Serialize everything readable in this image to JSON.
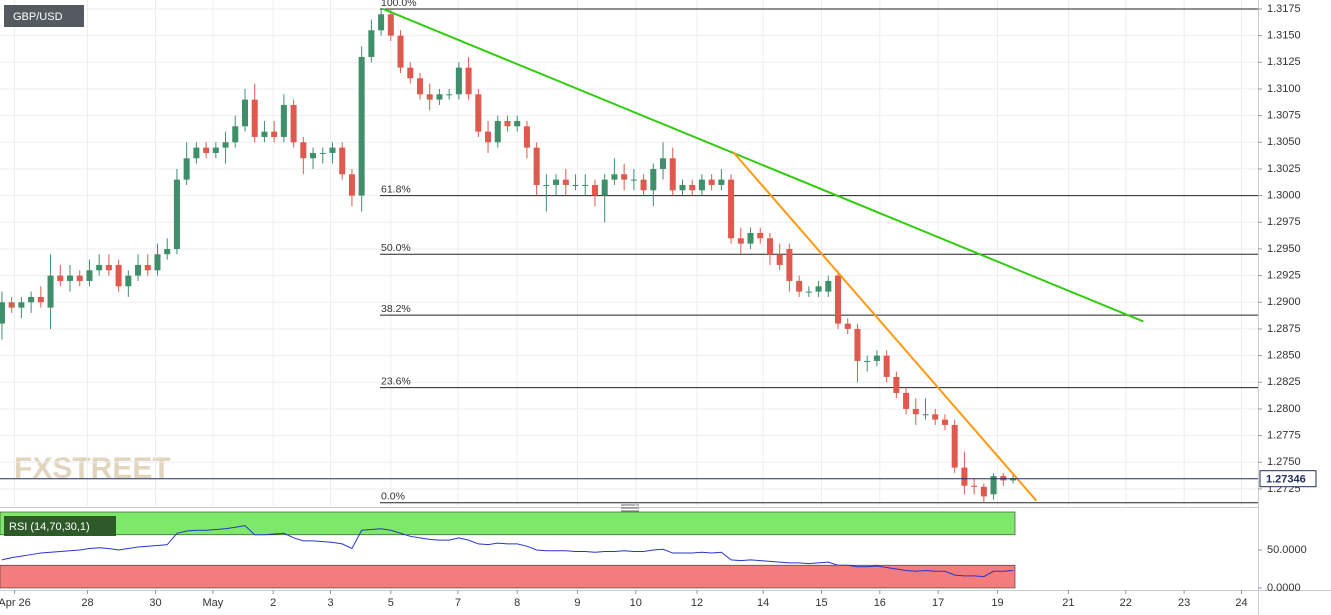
{
  "chart_data": [
    {
      "type": "candlestick",
      "title": "GBP/USD",
      "open": [
        1.288,
        1.29,
        1.2895,
        1.29,
        1.2905,
        1.2895,
        1.2925,
        1.292,
        1.2925,
        1.292,
        1.293,
        1.2935,
        1.2935,
        1.2915,
        1.2925,
        1.2935,
        1.293,
        1.2945,
        1.295,
        1.3015,
        1.3035,
        1.3045,
        1.304,
        1.3045,
        1.305,
        1.3065,
        1.309,
        1.3055,
        1.306,
        1.3055,
        1.3085,
        1.305,
        1.3035,
        1.304,
        1.304,
        1.3045,
        1.302,
        1.3,
        1.313,
        1.3155,
        1.317,
        1.315,
        1.312,
        1.311,
        1.3095,
        1.309,
        1.3095,
        1.3095,
        1.312,
        1.3095,
        1.306,
        1.305,
        1.307,
        1.3065,
        1.3065,
        1.3045,
        1.301,
        1.301,
        1.3015,
        1.301,
        1.301,
        1.301,
        1.3,
        1.3015,
        1.302,
        1.3015,
        1.3015,
        1.3005,
        1.3025,
        1.3035,
        1.3005,
        1.301,
        1.3005,
        1.3015,
        1.301,
        1.3015,
        1.296,
        1.2955,
        1.2965,
        1.296,
        1.2945,
        1.295,
        1.292,
        1.291,
        1.291,
        1.291,
        1.2925,
        1.288,
        1.2875,
        1.2845,
        1.2845,
        1.285,
        1.283,
        1.2815,
        1.28,
        1.2795,
        1.2795,
        1.279,
        1.2785,
        1.2745,
        1.2728,
        1.2727,
        1.272,
        1.2737,
        1.2733
      ],
      "high": [
        1.291,
        1.2905,
        1.2905,
        1.291,
        1.2915,
        1.2945,
        1.2935,
        1.2935,
        1.293,
        1.294,
        1.2945,
        1.2945,
        1.294,
        1.293,
        1.2945,
        1.2945,
        1.2955,
        1.296,
        1.3025,
        1.305,
        1.305,
        1.305,
        1.305,
        1.306,
        1.3075,
        1.31,
        1.3105,
        1.307,
        1.307,
        1.3095,
        1.309,
        1.3055,
        1.3045,
        1.3045,
        1.305,
        1.305,
        1.3025,
        1.314,
        1.3165,
        1.3175,
        1.3175,
        1.3155,
        1.3125,
        1.3115,
        1.3105,
        1.31,
        1.31,
        1.3125,
        1.313,
        1.31,
        1.307,
        1.3075,
        1.3075,
        1.3075,
        1.307,
        1.305,
        1.302,
        1.302,
        1.3025,
        1.302,
        1.302,
        1.3015,
        1.302,
        1.3035,
        1.303,
        1.3025,
        1.302,
        1.303,
        1.305,
        1.3045,
        1.3015,
        1.3015,
        1.302,
        1.302,
        1.3025,
        1.302,
        1.297,
        1.297,
        1.297,
        1.2965,
        1.2955,
        1.2955,
        1.2925,
        1.2915,
        1.292,
        1.2925,
        1.293,
        1.2885,
        1.288,
        1.285,
        1.2855,
        1.2855,
        1.2835,
        1.282,
        1.281,
        1.281,
        1.28,
        1.2795,
        1.279,
        1.276,
        1.2735,
        1.273,
        1.274,
        1.274,
        1.2738
      ],
      "low": [
        1.2865,
        1.289,
        1.2885,
        1.289,
        1.2895,
        1.2875,
        1.2915,
        1.291,
        1.2915,
        1.2915,
        1.2925,
        1.2925,
        1.291,
        1.2905,
        1.292,
        1.2925,
        1.2925,
        1.294,
        1.2945,
        1.301,
        1.303,
        1.3035,
        1.3035,
        1.303,
        1.3045,
        1.306,
        1.305,
        1.305,
        1.305,
        1.305,
        1.3045,
        1.302,
        1.3025,
        1.303,
        1.303,
        1.3015,
        1.299,
        1.2985,
        1.3125,
        1.315,
        1.3145,
        1.3115,
        1.3105,
        1.309,
        1.308,
        1.3085,
        1.309,
        1.309,
        1.309,
        1.3055,
        1.304,
        1.3045,
        1.306,
        1.306,
        1.3035,
        1.3,
        1.2985,
        1.3,
        1.3,
        1.3005,
        1.3,
        1.299,
        1.2975,
        1.301,
        1.3005,
        1.3005,
        1.3,
        1.299,
        1.3015,
        1.3,
        1.3,
        1.3,
        1.3,
        1.3005,
        1.3005,
        1.2955,
        1.2945,
        1.295,
        1.2955,
        1.2935,
        1.293,
        1.291,
        1.2905,
        1.2905,
        1.2905,
        1.2905,
        1.2875,
        1.287,
        1.2825,
        1.2835,
        1.284,
        1.2825,
        1.281,
        1.2795,
        1.2785,
        1.279,
        1.2785,
        1.278,
        1.274,
        1.272,
        1.272,
        1.2712,
        1.2715,
        1.2728,
        1.273
      ],
      "close": [
        1.29,
        1.2895,
        1.29,
        1.2905,
        1.29,
        1.2925,
        1.292,
        1.2925,
        1.292,
        1.293,
        1.2935,
        1.293,
        1.2915,
        1.2925,
        1.2935,
        1.293,
        1.2945,
        1.295,
        1.3015,
        1.3035,
        1.3045,
        1.304,
        1.3045,
        1.305,
        1.3065,
        1.309,
        1.3055,
        1.306,
        1.3055,
        1.3085,
        1.305,
        1.3035,
        1.304,
        1.304,
        1.3045,
        1.302,
        1.3,
        1.313,
        1.3155,
        1.317,
        1.315,
        1.312,
        1.311,
        1.3095,
        1.309,
        1.3095,
        1.3095,
        1.312,
        1.3095,
        1.306,
        1.305,
        1.307,
        1.3065,
        1.307,
        1.3045,
        1.301,
        1.301,
        1.3015,
        1.301,
        1.301,
        1.301,
        1.3,
        1.3015,
        1.302,
        1.3015,
        1.3015,
        1.3005,
        1.3025,
        1.3035,
        1.3005,
        1.301,
        1.3005,
        1.3015,
        1.301,
        1.3015,
        1.296,
        1.2955,
        1.2965,
        1.296,
        1.2945,
        1.2935,
        1.292,
        1.291,
        1.291,
        1.2915,
        1.292,
        1.288,
        1.2875,
        1.2845,
        1.2845,
        1.285,
        1.283,
        1.2815,
        1.28,
        1.2795,
        1.2795,
        1.279,
        1.2785,
        1.2745,
        1.2728,
        1.2727,
        1.2718,
        1.2737,
        1.2733,
        1.2735
      ],
      "up_color": "#3f8f6b",
      "down_color": "#de5a4e",
      "ylim": [
        1.2709,
        1.31834
      ],
      "yticks": [
        1.2725,
        {
          "value": 1.275,
          "label": "1.2750"
        },
        1.2775,
        {
          "value": 1.28,
          "label": "1.2800"
        },
        1.2825,
        {
          "value": 1.285,
          "label": "1.2850"
        },
        1.2875,
        {
          "value": 1.29,
          "label": "1.2900"
        },
        1.2925,
        {
          "value": 1.295,
          "label": "1.2950"
        },
        1.2975,
        {
          "value": 1.3,
          "label": "1.3000"
        },
        1.3025,
        {
          "value": 1.305,
          "label": "1.3050"
        },
        1.3075,
        {
          "value": 1.31,
          "label": "1.3100"
        },
        1.3125,
        {
          "value": 1.315,
          "label": "1.3150"
        },
        1.3175
      ],
      "xlim": [
        -0.2,
        129.2
      ],
      "xticks": [
        {
          "value": 1.3,
          "label": "Apr 26"
        },
        {
          "value": 8.8,
          "label": "28"
        },
        {
          "value": 15.8,
          "label": "30"
        },
        {
          "value": 21.7,
          "label": "May"
        },
        {
          "value": 27.9,
          "label": "2"
        },
        {
          "value": 33.8,
          "label": "3"
        },
        {
          "value": 40.0,
          "label": "5"
        },
        {
          "value": 46.9,
          "label": "7"
        },
        {
          "value": 53.0,
          "label": "8"
        },
        {
          "value": 59.2,
          "label": "9"
        },
        {
          "value": 65.2,
          "label": "10"
        },
        {
          "value": 71.5,
          "label": "12"
        },
        {
          "value": 78.3,
          "label": "14"
        },
        {
          "value": 84.3,
          "label": "15"
        },
        {
          "value": 90.3,
          "label": "16"
        },
        {
          "value": 96.3,
          "label": "17"
        },
        {
          "value": 102.4,
          "label": "19"
        },
        {
          "value": 109.7,
          "label": "21"
        },
        {
          "value": 115.6,
          "label": "22"
        },
        {
          "value": 121.6,
          "label": "23"
        },
        {
          "value": 127.5,
          "label": "24"
        }
      ],
      "grid": true,
      "fib_levels": [
        {
          "label": "100.0%",
          "value": 1.3175
        },
        {
          "label": "61.8%",
          "value": 1.3
        },
        {
          "label": "50.0%",
          "value": 1.2945
        },
        {
          "label": "38.2%",
          "value": 1.2888
        },
        {
          "label": "23.6%",
          "value": 1.282
        },
        {
          "label": "0.0%",
          "value": 1.2712
        }
      ],
      "trend_lines": [
        {
          "color": "#33cc11",
          "x": [
            39.2,
            117.4
          ],
          "y": [
            1.3175,
            1.2882
          ]
        },
        {
          "color": "#ff9a10",
          "x": [
            75.2,
            106.4
          ],
          "y": [
            1.3041,
            1.2714
          ]
        }
      ],
      "last_price": 1.27346,
      "last_price_color": "#1f2d5c"
    },
    {
      "type": "line",
      "title": "RSI (14,70,30,1)",
      "values": [
        37,
        40,
        42,
        44,
        46,
        47,
        48,
        49,
        50,
        52,
        53,
        52,
        50,
        52,
        54,
        55,
        56,
        57,
        72,
        75,
        76,
        76,
        77,
        78,
        80,
        82,
        70,
        70,
        71,
        72,
        66,
        62,
        62,
        61,
        60,
        58,
        52,
        76,
        77,
        78,
        76,
        72,
        68,
        66,
        64,
        63,
        63,
        66,
        63,
        58,
        57,
        59,
        58,
        58,
        55,
        50,
        49,
        49,
        49,
        48,
        48,
        47,
        48,
        48,
        49,
        48,
        48,
        50,
        51,
        46,
        46,
        46,
        47,
        46,
        47,
        37,
        36,
        37,
        36,
        35,
        34,
        33,
        33,
        32,
        33,
        34,
        30,
        30,
        28,
        28,
        29,
        27,
        25,
        23,
        22,
        23,
        22,
        22,
        17,
        16,
        16,
        15,
        22,
        22,
        23
      ],
      "color": "#2a36c8",
      "ylim": [
        0,
        100
      ],
      "yticks": [
        {
          "value": 50,
          "label": "50.0000"
        },
        {
          "value": 0,
          "label": "0.0000"
        }
      ],
      "overbought": 70,
      "oversold": 30,
      "overbought_color": "#7ee86a",
      "oversold_color": "#f47c7c"
    }
  ],
  "watermark": "FXSTREET"
}
